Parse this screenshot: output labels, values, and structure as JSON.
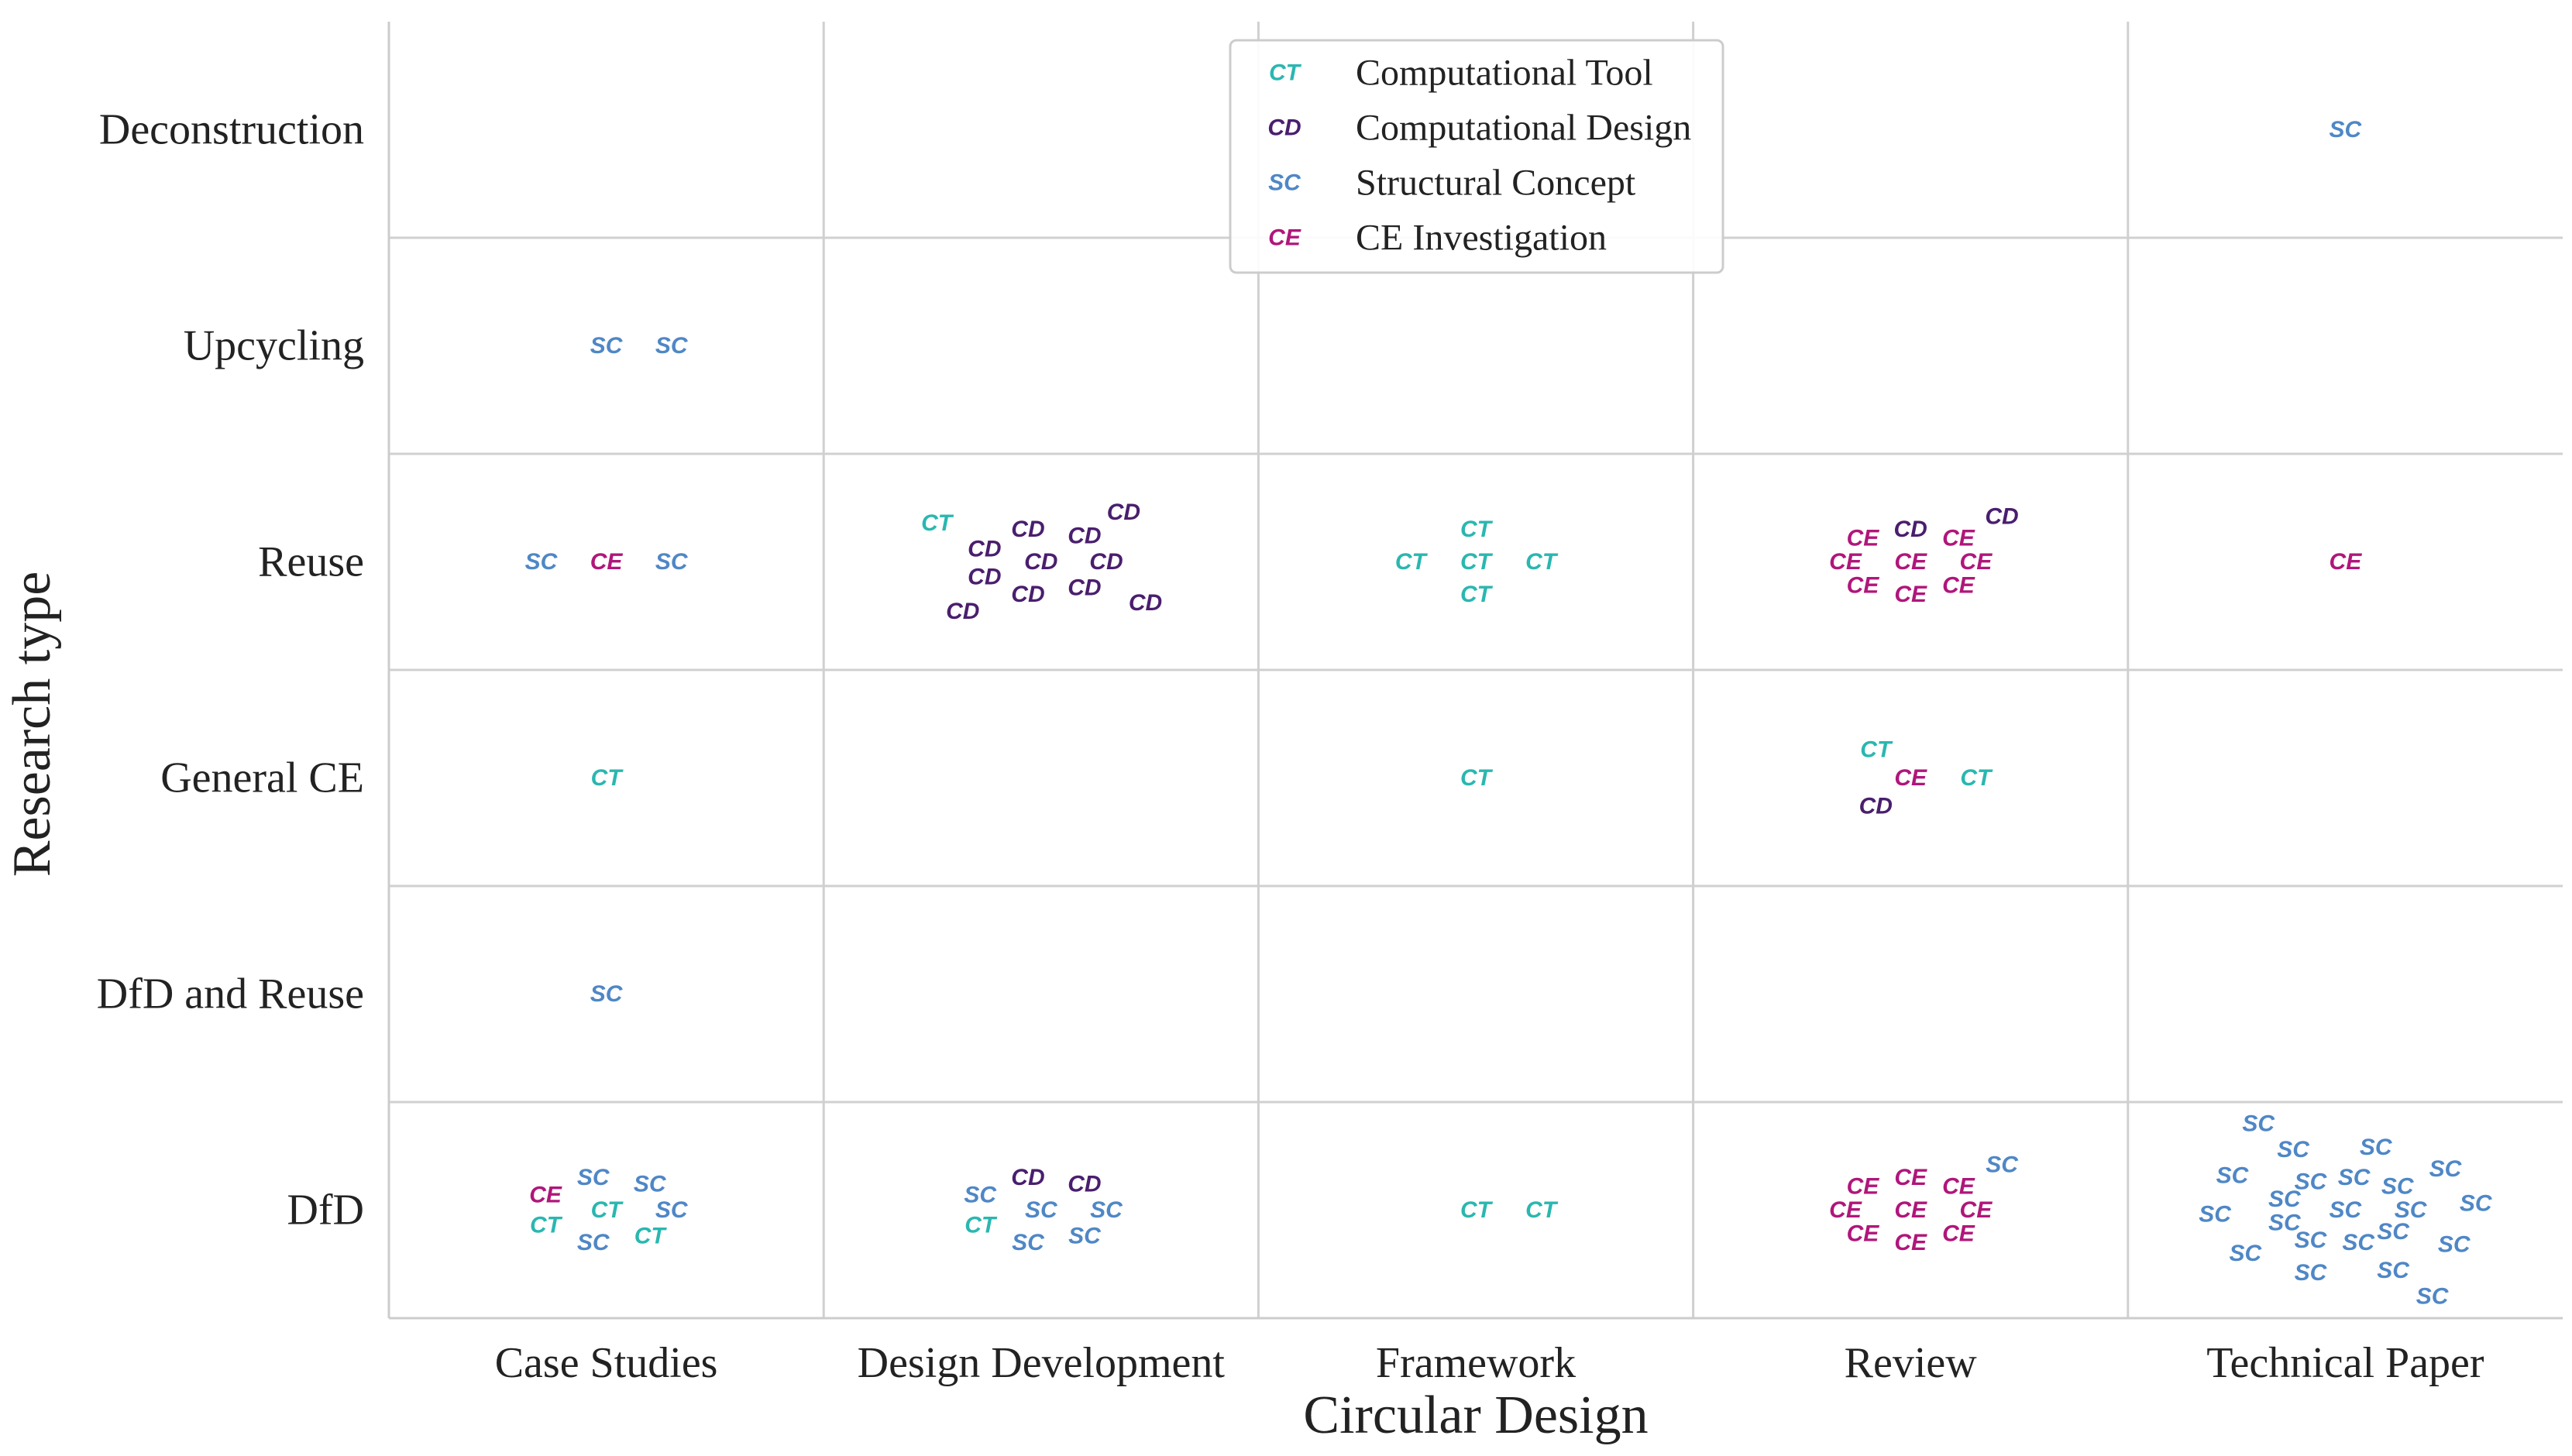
{
  "chart_data": {
    "type": "scatter",
    "title": "",
    "xlabel": "Circular Design",
    "ylabel": "Research type",
    "x_categories": [
      "Case Studies",
      "Design Development",
      "Framework",
      "Review",
      "Technical Paper"
    ],
    "y_categories": [
      "Deconstruction",
      "Upcycling",
      "Reuse",
      "General CE",
      "DfD and Reuse",
      "DfD"
    ],
    "grid": true,
    "legend_position": "top-center",
    "series": [
      {
        "key": "CT",
        "name": "Computational Tool",
        "marker": "CT",
        "color": "#2ab7b0"
      },
      {
        "key": "CD",
        "name": "Computational Design",
        "marker": "CD",
        "color": "#4a1e6e"
      },
      {
        "key": "SC",
        "name": "Structural Concept",
        "marker": "SC",
        "color": "#4f87c6"
      },
      {
        "key": "CE",
        "name": "CE Investigation",
        "marker": "CE",
        "color": "#b0167a"
      }
    ],
    "points": [
      {
        "x": 4,
        "y": 0,
        "series": "SC",
        "dx": 0.0,
        "dy": 0.0
      },
      {
        "x": 0,
        "y": 1,
        "series": "SC",
        "dx": 0.0,
        "dy": 0.0
      },
      {
        "x": 0,
        "y": 1,
        "series": "SC",
        "dx": 0.15,
        "dy": 0.0
      },
      {
        "x": 0,
        "y": 2,
        "series": "SC",
        "dx": -0.15,
        "dy": 0.0
      },
      {
        "x": 0,
        "y": 2,
        "series": "CE",
        "dx": 0.0,
        "dy": 0.0
      },
      {
        "x": 0,
        "y": 2,
        "series": "SC",
        "dx": 0.15,
        "dy": 0.0
      },
      {
        "x": 1,
        "y": 2,
        "series": "CT",
        "dx": -0.24,
        "dy": 0.18
      },
      {
        "x": 1,
        "y": 2,
        "series": "CD",
        "dx": -0.13,
        "dy": 0.06
      },
      {
        "x": 1,
        "y": 2,
        "series": "CD",
        "dx": -0.03,
        "dy": 0.15
      },
      {
        "x": 1,
        "y": 2,
        "series": "CD",
        "dx": 0.1,
        "dy": 0.12
      },
      {
        "x": 1,
        "y": 2,
        "series": "CD",
        "dx": 0.19,
        "dy": 0.23
      },
      {
        "x": 1,
        "y": 2,
        "series": "CD",
        "dx": 0.0,
        "dy": 0.0
      },
      {
        "x": 1,
        "y": 2,
        "series": "CD",
        "dx": 0.15,
        "dy": 0.0
      },
      {
        "x": 1,
        "y": 2,
        "series": "CD",
        "dx": -0.13,
        "dy": -0.07
      },
      {
        "x": 1,
        "y": 2,
        "series": "CD",
        "dx": -0.03,
        "dy": -0.15
      },
      {
        "x": 1,
        "y": 2,
        "series": "CD",
        "dx": 0.1,
        "dy": -0.12
      },
      {
        "x": 1,
        "y": 2,
        "series": "CD",
        "dx": 0.24,
        "dy": -0.19
      },
      {
        "x": 1,
        "y": 2,
        "series": "CD",
        "dx": -0.18,
        "dy": -0.23
      },
      {
        "x": 2,
        "y": 2,
        "series": "CT",
        "dx": 0.0,
        "dy": 0.15
      },
      {
        "x": 2,
        "y": 2,
        "series": "CT",
        "dx": -0.15,
        "dy": 0.0
      },
      {
        "x": 2,
        "y": 2,
        "series": "CT",
        "dx": 0.0,
        "dy": 0.0
      },
      {
        "x": 2,
        "y": 2,
        "series": "CT",
        "dx": 0.15,
        "dy": 0.0
      },
      {
        "x": 2,
        "y": 2,
        "series": "CT",
        "dx": 0.0,
        "dy": -0.15
      },
      {
        "x": 3,
        "y": 2,
        "series": "CE",
        "dx": -0.11,
        "dy": 0.11
      },
      {
        "x": 3,
        "y": 2,
        "series": "CD",
        "dx": 0.0,
        "dy": 0.15
      },
      {
        "x": 3,
        "y": 2,
        "series": "CE",
        "dx": 0.11,
        "dy": 0.11
      },
      {
        "x": 3,
        "y": 2,
        "series": "CD",
        "dx": 0.21,
        "dy": 0.21
      },
      {
        "x": 3,
        "y": 2,
        "series": "CE",
        "dx": -0.15,
        "dy": 0.0
      },
      {
        "x": 3,
        "y": 2,
        "series": "CE",
        "dx": 0.0,
        "dy": 0.0
      },
      {
        "x": 3,
        "y": 2,
        "series": "CE",
        "dx": 0.15,
        "dy": 0.0
      },
      {
        "x": 3,
        "y": 2,
        "series": "CE",
        "dx": -0.11,
        "dy": -0.11
      },
      {
        "x": 3,
        "y": 2,
        "series": "CE",
        "dx": 0.0,
        "dy": -0.15
      },
      {
        "x": 3,
        "y": 2,
        "series": "CE",
        "dx": 0.11,
        "dy": -0.11
      },
      {
        "x": 4,
        "y": 2,
        "series": "CE",
        "dx": 0.0,
        "dy": 0.0
      },
      {
        "x": 0,
        "y": 3,
        "series": "CT",
        "dx": 0.0,
        "dy": 0.0
      },
      {
        "x": 2,
        "y": 3,
        "series": "CT",
        "dx": 0.0,
        "dy": 0.0
      },
      {
        "x": 3,
        "y": 3,
        "series": "CT",
        "dx": -0.08,
        "dy": 0.13
      },
      {
        "x": 3,
        "y": 3,
        "series": "CE",
        "dx": 0.0,
        "dy": 0.0
      },
      {
        "x": 3,
        "y": 3,
        "series": "CT",
        "dx": 0.15,
        "dy": 0.0
      },
      {
        "x": 3,
        "y": 3,
        "series": "CD",
        "dx": -0.08,
        "dy": -0.13
      },
      {
        "x": 0,
        "y": 4,
        "series": "SC",
        "dx": 0.0,
        "dy": 0.0
      },
      {
        "x": 0,
        "y": 5,
        "series": "SC",
        "dx": -0.03,
        "dy": 0.15
      },
      {
        "x": 0,
        "y": 5,
        "series": "SC",
        "dx": 0.1,
        "dy": 0.12
      },
      {
        "x": 0,
        "y": 5,
        "series": "CE",
        "dx": -0.14,
        "dy": 0.07
      },
      {
        "x": 0,
        "y": 5,
        "series": "CT",
        "dx": -0.14,
        "dy": -0.07
      },
      {
        "x": 0,
        "y": 5,
        "series": "CT",
        "dx": 0.0,
        "dy": 0.0
      },
      {
        "x": 0,
        "y": 5,
        "series": "SC",
        "dx": 0.15,
        "dy": 0.0
      },
      {
        "x": 0,
        "y": 5,
        "series": "SC",
        "dx": -0.03,
        "dy": -0.15
      },
      {
        "x": 0,
        "y": 5,
        "series": "CT",
        "dx": 0.1,
        "dy": -0.12
      },
      {
        "x": 1,
        "y": 5,
        "series": "CD",
        "dx": -0.03,
        "dy": 0.15
      },
      {
        "x": 1,
        "y": 5,
        "series": "CD",
        "dx": 0.1,
        "dy": 0.12
      },
      {
        "x": 1,
        "y": 5,
        "series": "SC",
        "dx": -0.14,
        "dy": 0.07
      },
      {
        "x": 1,
        "y": 5,
        "series": "SC",
        "dx": 0.0,
        "dy": 0.0
      },
      {
        "x": 1,
        "y": 5,
        "series": "SC",
        "dx": 0.15,
        "dy": 0.0
      },
      {
        "x": 1,
        "y": 5,
        "series": "CT",
        "dx": -0.14,
        "dy": -0.07
      },
      {
        "x": 1,
        "y": 5,
        "series": "SC",
        "dx": -0.03,
        "dy": -0.15
      },
      {
        "x": 1,
        "y": 5,
        "series": "SC",
        "dx": 0.1,
        "dy": -0.12
      },
      {
        "x": 2,
        "y": 5,
        "series": "CT",
        "dx": 0.0,
        "dy": 0.0
      },
      {
        "x": 2,
        "y": 5,
        "series": "CT",
        "dx": 0.15,
        "dy": 0.0
      },
      {
        "x": 3,
        "y": 5,
        "series": "CE",
        "dx": -0.11,
        "dy": 0.11
      },
      {
        "x": 3,
        "y": 5,
        "series": "CE",
        "dx": 0.0,
        "dy": 0.15
      },
      {
        "x": 3,
        "y": 5,
        "series": "CE",
        "dx": 0.11,
        "dy": 0.11
      },
      {
        "x": 3,
        "y": 5,
        "series": "SC",
        "dx": 0.21,
        "dy": 0.21
      },
      {
        "x": 3,
        "y": 5,
        "series": "CE",
        "dx": -0.15,
        "dy": 0.0
      },
      {
        "x": 3,
        "y": 5,
        "series": "CE",
        "dx": 0.0,
        "dy": 0.0
      },
      {
        "x": 3,
        "y": 5,
        "series": "CE",
        "dx": 0.15,
        "dy": 0.0
      },
      {
        "x": 3,
        "y": 5,
        "series": "CE",
        "dx": -0.11,
        "dy": -0.11
      },
      {
        "x": 3,
        "y": 5,
        "series": "CE",
        "dx": 0.0,
        "dy": -0.15
      },
      {
        "x": 3,
        "y": 5,
        "series": "CE",
        "dx": 0.11,
        "dy": -0.11
      },
      {
        "x": 4,
        "y": 5,
        "series": "SC",
        "dx": -0.2,
        "dy": 0.4
      },
      {
        "x": 4,
        "y": 5,
        "series": "SC",
        "dx": -0.12,
        "dy": 0.28
      },
      {
        "x": 4,
        "y": 5,
        "series": "SC",
        "dx": 0.07,
        "dy": 0.29
      },
      {
        "x": 4,
        "y": 5,
        "series": "SC",
        "dx": -0.26,
        "dy": 0.16
      },
      {
        "x": 4,
        "y": 5,
        "series": "SC",
        "dx": -0.08,
        "dy": 0.13
      },
      {
        "x": 4,
        "y": 5,
        "series": "SC",
        "dx": 0.02,
        "dy": 0.15
      },
      {
        "x": 4,
        "y": 5,
        "series": "SC",
        "dx": 0.23,
        "dy": 0.19
      },
      {
        "x": 4,
        "y": 5,
        "series": "SC",
        "dx": -0.14,
        "dy": 0.05
      },
      {
        "x": 4,
        "y": 5,
        "series": "SC",
        "dx": 0.12,
        "dy": 0.11
      },
      {
        "x": 4,
        "y": 5,
        "series": "SC",
        "dx": -0.3,
        "dy": -0.02
      },
      {
        "x": 4,
        "y": 5,
        "series": "SC",
        "dx": -0.14,
        "dy": -0.06
      },
      {
        "x": 4,
        "y": 5,
        "series": "SC",
        "dx": 0.0,
        "dy": 0.0
      },
      {
        "x": 4,
        "y": 5,
        "series": "SC",
        "dx": 0.15,
        "dy": 0.0
      },
      {
        "x": 4,
        "y": 5,
        "series": "SC",
        "dx": 0.3,
        "dy": 0.03
      },
      {
        "x": 4,
        "y": 5,
        "series": "SC",
        "dx": -0.08,
        "dy": -0.14
      },
      {
        "x": 4,
        "y": 5,
        "series": "SC",
        "dx": 0.03,
        "dy": -0.15
      },
      {
        "x": 4,
        "y": 5,
        "series": "SC",
        "dx": 0.11,
        "dy": -0.1
      },
      {
        "x": 4,
        "y": 5,
        "series": "SC",
        "dx": -0.23,
        "dy": -0.2
      },
      {
        "x": 4,
        "y": 5,
        "series": "SC",
        "dx": 0.25,
        "dy": -0.16
      },
      {
        "x": 4,
        "y": 5,
        "series": "SC",
        "dx": -0.08,
        "dy": -0.29
      },
      {
        "x": 4,
        "y": 5,
        "series": "SC",
        "dx": 0.11,
        "dy": -0.28
      },
      {
        "x": 4,
        "y": 5,
        "series": "SC",
        "dx": 0.2,
        "dy": -0.4
      }
    ]
  }
}
